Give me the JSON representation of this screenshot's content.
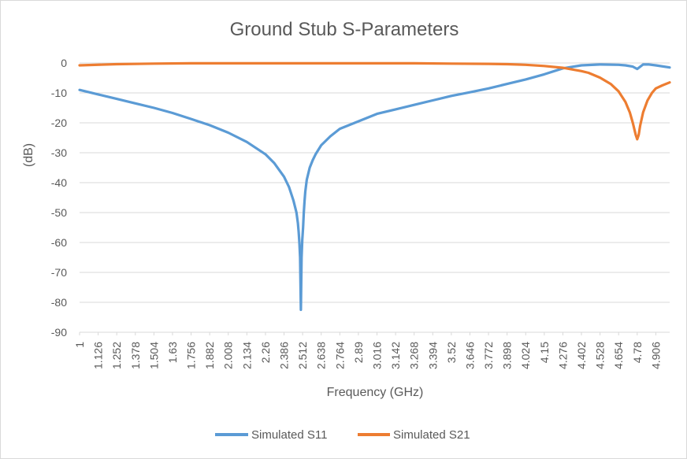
{
  "chart_data": {
    "type": "line",
    "title": "Ground Stub S-Parameters",
    "xlabel": "Frequency (GHz)",
    "ylabel": "(dB)",
    "ylim": [
      -90,
      0
    ],
    "y_ticks": [
      "0",
      "-10",
      "-20",
      "-30",
      "-40",
      "-50",
      "-60",
      "-70",
      "-80",
      "-90"
    ],
    "x_range": [
      1,
      5
    ],
    "x_tick_labels": [
      "1",
      "1.126",
      "1.252",
      "1.378",
      "1.504",
      "1.63",
      "1.756",
      "1.882",
      "2.008",
      "2.134",
      "2.26",
      "2.386",
      "2.512",
      "2.638",
      "2.764",
      "2.89",
      "3.016",
      "3.142",
      "3.268",
      "3.394",
      "3.52",
      "3.646",
      "3.772",
      "3.898",
      "4.024",
      "4.15",
      "4.276",
      "4.402",
      "4.528",
      "4.654",
      "4.78",
      "4.906"
    ],
    "grid": "horizontal",
    "legend_position": "bottom",
    "series": [
      {
        "name": "Simulated S11",
        "color": "#5b9bd5",
        "x": [
          1.0,
          1.126,
          1.252,
          1.378,
          1.504,
          1.63,
          1.756,
          1.882,
          2.008,
          2.134,
          2.26,
          2.32,
          2.386,
          2.42,
          2.45,
          2.47,
          2.48,
          2.485,
          2.49,
          2.495,
          2.5,
          2.505,
          2.51,
          2.515,
          2.52,
          2.525,
          2.53,
          2.54,
          2.56,
          2.58,
          2.6,
          2.638,
          2.7,
          2.764,
          2.89,
          3.016,
          3.142,
          3.268,
          3.394,
          3.52,
          3.646,
          3.772,
          3.898,
          4.024,
          4.15,
          4.276,
          4.402,
          4.528,
          4.654,
          4.7,
          4.75,
          4.78,
          4.82,
          4.86,
          4.906,
          5.0
        ],
        "y": [
          -9.0,
          -10.5,
          -12.0,
          -13.5,
          -15.0,
          -16.7,
          -18.7,
          -20.8,
          -23.3,
          -26.4,
          -30.5,
          -33.5,
          -38.0,
          -41.5,
          -46.0,
          -50.0,
          -53.5,
          -56.5,
          -60.0,
          -65.0,
          -82.5,
          -65.0,
          -59.0,
          -55.0,
          -50.0,
          -46.0,
          -43.0,
          -39.0,
          -35.0,
          -32.5,
          -30.5,
          -27.5,
          -24.5,
          -22.0,
          -19.5,
          -17.0,
          -15.5,
          -14.0,
          -12.5,
          -11.0,
          -9.8,
          -8.5,
          -7.0,
          -5.5,
          -3.8,
          -1.8,
          -0.8,
          -0.5,
          -0.6,
          -0.8,
          -1.2,
          -2.0,
          -0.5,
          -0.5,
          -0.8,
          -1.5
        ]
      },
      {
        "name": "Simulated S21",
        "color": "#ed7d31",
        "x": [
          1.0,
          1.252,
          1.504,
          1.756,
          2.008,
          2.26,
          2.512,
          2.764,
          3.016,
          3.268,
          3.52,
          3.772,
          3.898,
          4.024,
          4.15,
          4.276,
          4.402,
          4.45,
          4.528,
          4.6,
          4.654,
          4.7,
          4.73,
          4.75,
          4.77,
          4.78,
          4.79,
          4.8,
          4.82,
          4.85,
          4.88,
          4.906,
          4.95,
          5.0
        ],
        "y": [
          -0.8,
          -0.4,
          -0.2,
          -0.1,
          -0.1,
          -0.1,
          -0.1,
          -0.1,
          -0.1,
          -0.1,
          -0.2,
          -0.3,
          -0.4,
          -0.6,
          -1.0,
          -1.6,
          -2.7,
          -3.3,
          -4.9,
          -7.0,
          -9.5,
          -13.0,
          -16.5,
          -20.0,
          -24.0,
          -25.5,
          -24.0,
          -21.0,
          -16.5,
          -12.5,
          -10.0,
          -8.5,
          -7.5,
          -6.5
        ]
      }
    ]
  }
}
